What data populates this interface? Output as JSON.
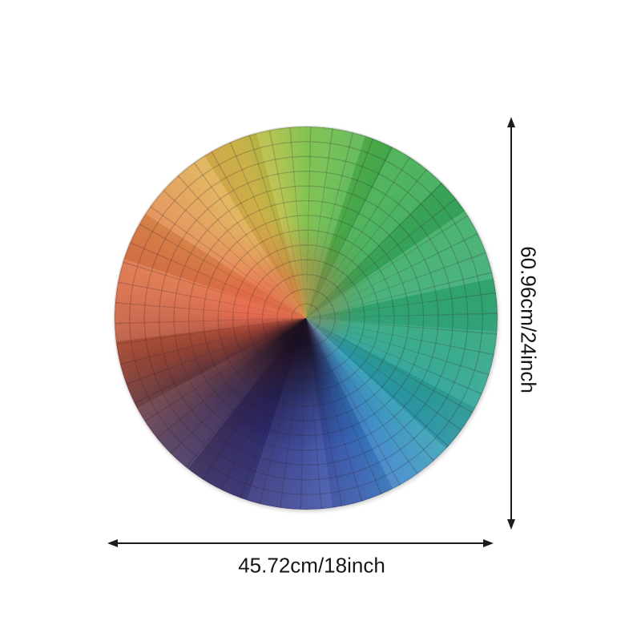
{
  "page": {
    "background": "#ffffff"
  },
  "product_image": {
    "subject": "round rainbow color-wheel jigsaw puzzle",
    "wheel": {
      "hue_stops": [
        {
          "angle": 0,
          "color": "#79bf45"
        },
        {
          "angle": 25,
          "color": "#47b04f"
        },
        {
          "angle": 60,
          "color": "#37ab63"
        },
        {
          "angle": 90,
          "color": "#33a97a"
        },
        {
          "angle": 112,
          "color": "#2ea58f"
        },
        {
          "angle": 132,
          "color": "#2c9db0"
        },
        {
          "angle": 148,
          "color": "#2f84c5"
        },
        {
          "angle": 160,
          "color": "#3a68bc"
        },
        {
          "angle": 172,
          "color": "#3d52a8"
        },
        {
          "angle": 182,
          "color": "#354295"
        },
        {
          "angle": 196,
          "color": "#303079"
        },
        {
          "angle": 212,
          "color": "#372c66"
        },
        {
          "angle": 228,
          "color": "#473051"
        },
        {
          "angle": 243,
          "color": "#6e3d43"
        },
        {
          "angle": 255,
          "color": "#9c4838"
        },
        {
          "angle": 267,
          "color": "#c45a3e"
        },
        {
          "angle": 279,
          "color": "#d96a45"
        },
        {
          "angle": 294,
          "color": "#e07c4a"
        },
        {
          "angle": 309,
          "color": "#e2944f"
        },
        {
          "angle": 325,
          "color": "#dfad50"
        },
        {
          "angle": 339,
          "color": "#d4bc4c"
        },
        {
          "angle": 351,
          "color": "#a5bf45"
        },
        {
          "angle": 360,
          "color": "#79bf45"
        }
      ],
      "center_dark_color": "#0c0816",
      "center_highlight_color": "#f0644b"
    }
  },
  "dimensions": {
    "height_label": "60.96cm/24inch",
    "width_label": "45.72cm/18inch",
    "line_color": "#1c1c1c"
  }
}
